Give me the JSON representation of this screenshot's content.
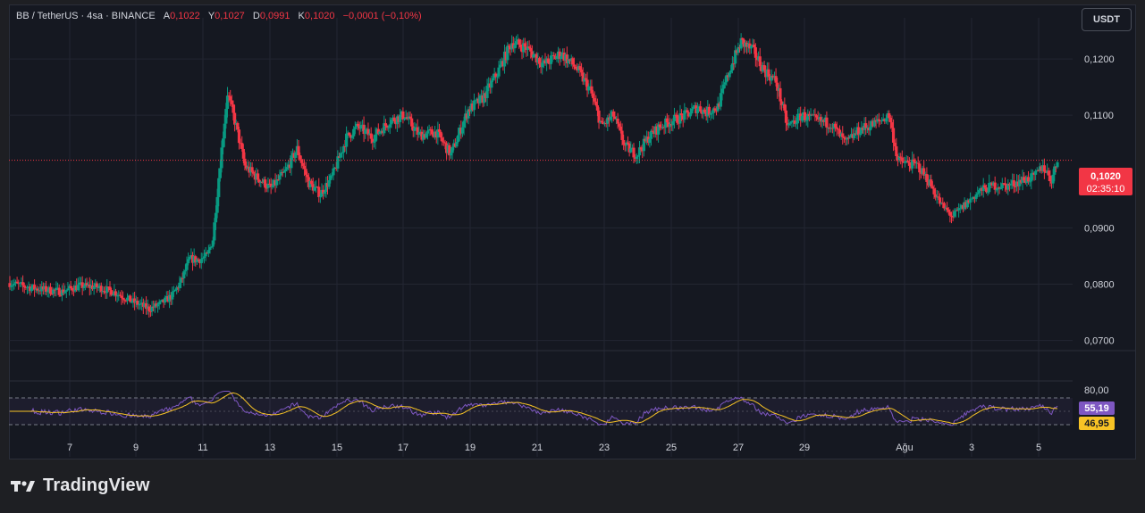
{
  "header": {
    "symbol": "BB / TetherUS · 4sa · BINANCE",
    "open_label": "A",
    "open_value": "0,1022",
    "high_label": "Y",
    "high_value": "0,1027",
    "low_label": "D",
    "low_value": "0,0991",
    "close_label": "K",
    "close_value": "0,1020",
    "change": "−0,0001 (−0,10%)"
  },
  "currency_button": "USDT",
  "price_badge": {
    "price": "0,1020",
    "countdown": "02:35:10"
  },
  "rsi_badges": {
    "rsi": "55,19",
    "rsi_ma": "46,95"
  },
  "rsi_level_label": "80,00",
  "footer": {
    "logo_text": "TradingView"
  },
  "colors": {
    "up": "#089981",
    "down": "#f23645",
    "rsi": "#7e57c2",
    "rsi_ma": "#f7c325",
    "background": "#151821",
    "grid": "#232632"
  },
  "chart_data": {
    "type": "candlestick",
    "price_axis": {
      "ticks": [
        "0,1200",
        "0,1100",
        "0,0900",
        "0,0800",
        "0,0700"
      ],
      "tick_values": [
        0.12,
        0.11,
        0.09,
        0.08,
        0.07
      ],
      "range": [
        0.0682,
        0.1273
      ]
    },
    "time_axis": {
      "ticks": [
        "7",
        "9",
        "11",
        "13",
        "15",
        "17",
        "19",
        "21",
        "23",
        "25",
        "27",
        "29",
        "Ağu",
        "3",
        "5"
      ]
    },
    "last_price": 0.102,
    "close_path": [
      [
        0,
        0.0802
      ],
      [
        18,
        0.0792
      ],
      [
        36,
        0.0787
      ],
      [
        48,
        0.0797
      ],
      [
        60,
        0.0795
      ],
      [
        72,
        0.0786
      ],
      [
        84,
        0.077
      ],
      [
        96,
        0.0756
      ],
      [
        104,
        0.0765
      ],
      [
        112,
        0.078
      ],
      [
        118,
        0.0805
      ],
      [
        124,
        0.0845
      ],
      [
        130,
        0.0843
      ],
      [
        136,
        0.085
      ],
      [
        140,
        0.088
      ],
      [
        144,
        0.099
      ],
      [
        150,
        0.114
      ],
      [
        156,
        0.108
      ],
      [
        162,
        0.101
      ],
      [
        170,
        0.099
      ],
      [
        180,
        0.097
      ],
      [
        190,
        0.1
      ],
      [
        198,
        0.104
      ],
      [
        206,
        0.098
      ],
      [
        214,
        0.096
      ],
      [
        222,
        0.099
      ],
      [
        232,
        0.106
      ],
      [
        240,
        0.108
      ],
      [
        250,
        0.106
      ],
      [
        262,
        0.109
      ],
      [
        272,
        0.11
      ],
      [
        282,
        0.1065
      ],
      [
        294,
        0.107
      ],
      [
        304,
        0.103
      ],
      [
        316,
        0.111
      ],
      [
        326,
        0.113
      ],
      [
        336,
        0.1175
      ],
      [
        346,
        0.123
      ],
      [
        356,
        0.122
      ],
      [
        368,
        0.119
      ],
      [
        380,
        0.121
      ],
      [
        390,
        0.1185
      ],
      [
        400,
        0.1145
      ],
      [
        408,
        0.108
      ],
      [
        416,
        0.11
      ],
      [
        424,
        0.1045
      ],
      [
        432,
        0.103
      ],
      [
        440,
        0.106
      ],
      [
        448,
        0.108
      ],
      [
        456,
        0.109
      ],
      [
        466,
        0.11
      ],
      [
        474,
        0.1115
      ],
      [
        480,
        0.1105
      ],
      [
        488,
        0.1115
      ],
      [
        496,
        0.118
      ],
      [
        504,
        0.123
      ],
      [
        512,
        0.1215
      ],
      [
        520,
        0.118
      ],
      [
        528,
        0.116
      ],
      [
        536,
        0.108
      ],
      [
        546,
        0.11
      ],
      [
        556,
        0.109
      ],
      [
        566,
        0.1085
      ],
      [
        576,
        0.105
      ],
      [
        586,
        0.1075
      ],
      [
        596,
        0.1085
      ],
      [
        606,
        0.11
      ],
      [
        612,
        0.102
      ],
      [
        618,
        0.1015
      ],
      [
        626,
        0.101
      ],
      [
        634,
        0.098
      ],
      [
        642,
        0.094
      ],
      [
        650,
        0.092
      ],
      [
        660,
        0.0945
      ],
      [
        668,
        0.0965
      ],
      [
        678,
        0.0975
      ],
      [
        688,
        0.0975
      ],
      [
        698,
        0.0985
      ],
      [
        706,
        0.099
      ],
      [
        712,
        0.101
      ],
      [
        718,
        0.0985
      ],
      [
        722,
        0.102
      ]
    ],
    "rsi": {
      "level": 80.0,
      "last": 55.19,
      "ma_last": 46.95
    }
  }
}
